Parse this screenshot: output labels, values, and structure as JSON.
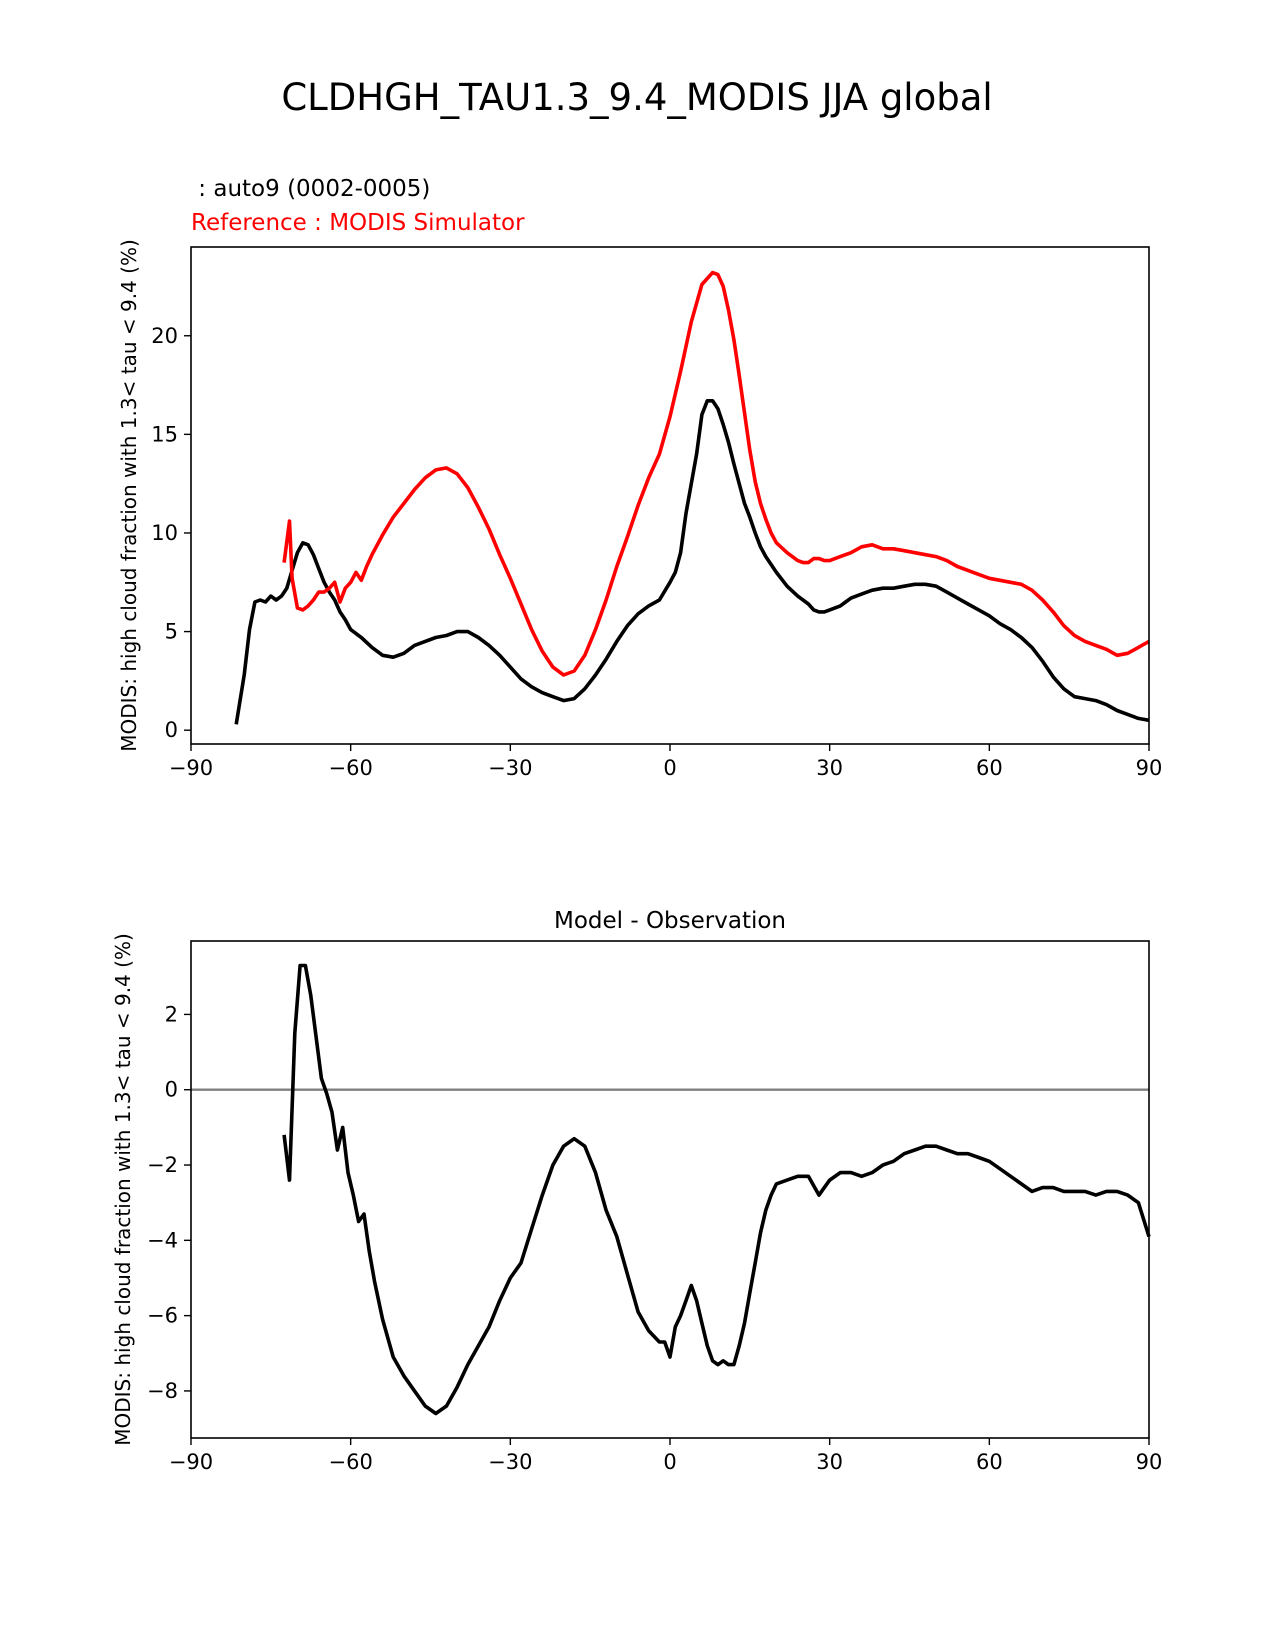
{
  "figure": {
    "title": "CLDHGH_TAU1.3_9.4_MODIS JJA global"
  },
  "colors": {
    "test": "#000000",
    "reference": "#ff0000",
    "zero_line": "#808080"
  },
  "chart_data": [
    {
      "type": "line",
      "test_label": " : auto9 (0002-0005)",
      "reference_label": "Reference : MODIS Simulator",
      "xlabel": "",
      "ylabel": "MODIS: high cloud fraction with 1.3< tau < 9.4 (%)",
      "xlim": [
        -90,
        90
      ],
      "ylim": [
        -0.7,
        24.5
      ],
      "xticks": [
        -90,
        -60,
        -30,
        0,
        30,
        60,
        90
      ],
      "yticks": [
        0,
        5,
        10,
        15,
        20
      ],
      "xtick_labels": [
        "−90",
        "−60",
        "−30",
        "0",
        "30",
        "60",
        "90"
      ],
      "ytick_labels": [
        "0",
        "5",
        "10",
        "15",
        "20"
      ],
      "series": [
        {
          "name": "test",
          "color": "#000000",
          "x": [
            -81.5,
            -80,
            -79,
            -78,
            -77,
            -76,
            -75,
            -74,
            -73,
            -72,
            -71,
            -70,
            -69,
            -68,
            -67,
            -66,
            -65,
            -64,
            -63,
            -62,
            -61,
            -60,
            -58,
            -56,
            -54,
            -52,
            -50,
            -48,
            -46,
            -44,
            -42,
            -40,
            -38,
            -36,
            -34,
            -32,
            -30,
            -28,
            -26,
            -24,
            -22,
            -20,
            -18,
            -16,
            -14,
            -12,
            -10,
            -8,
            -6,
            -4,
            -2,
            0,
            1,
            2,
            3,
            4,
            5,
            6,
            7,
            8,
            9,
            10,
            11,
            12,
            13,
            14,
            15,
            16,
            17,
            18,
            19,
            20,
            22,
            24,
            26,
            27,
            28,
            29,
            30,
            31,
            32,
            33,
            34,
            36,
            38,
            40,
            42,
            44,
            46,
            48,
            50,
            52,
            54,
            56,
            58,
            60,
            62,
            64,
            66,
            68,
            70,
            72,
            74,
            76,
            78,
            80,
            82,
            84,
            86,
            88,
            90
          ],
          "values": [
            0.3,
            2.8,
            5.1,
            6.5,
            6.6,
            6.5,
            6.8,
            6.6,
            6.8,
            7.2,
            8.1,
            9.0,
            9.5,
            9.4,
            8.9,
            8.2,
            7.5,
            7.0,
            6.6,
            6.0,
            5.6,
            5.1,
            4.7,
            4.2,
            3.8,
            3.7,
            3.9,
            4.3,
            4.5,
            4.7,
            4.8,
            5.0,
            5.0,
            4.7,
            4.3,
            3.8,
            3.2,
            2.6,
            2.2,
            1.9,
            1.7,
            1.5,
            1.6,
            2.1,
            2.8,
            3.6,
            4.5,
            5.3,
            5.9,
            6.3,
            6.6,
            7.5,
            8.0,
            9.0,
            11.0,
            12.5,
            14.0,
            16.0,
            16.7,
            16.7,
            16.3,
            15.5,
            14.6,
            13.5,
            12.5,
            11.5,
            10.8,
            10.0,
            9.3,
            8.8,
            8.4,
            8.0,
            7.3,
            6.8,
            6.4,
            6.1,
            6.0,
            6.0,
            6.1,
            6.2,
            6.3,
            6.5,
            6.7,
            6.9,
            7.1,
            7.2,
            7.2,
            7.3,
            7.4,
            7.4,
            7.3,
            7.0,
            6.7,
            6.4,
            6.1,
            5.8,
            5.4,
            5.1,
            4.7,
            4.2,
            3.5,
            2.7,
            2.1,
            1.7,
            1.6,
            1.5,
            1.3,
            1.0,
            0.8,
            0.6,
            0.5
          ]
        },
        {
          "name": "reference",
          "color": "#ff0000",
          "x": [
            -72.5,
            -71.5,
            -71,
            -70,
            -69,
            -68,
            -67,
            -66,
            -65,
            -64,
            -63,
            -62,
            -61,
            -60,
            -59,
            -58,
            -57,
            -56,
            -54,
            -52,
            -50,
            -48,
            -46,
            -44,
            -42,
            -40,
            -38,
            -36,
            -34,
            -32,
            -30,
            -28,
            -26,
            -24,
            -22,
            -20,
            -18,
            -16,
            -14,
            -12,
            -10,
            -8,
            -6,
            -4,
            -2,
            0,
            2,
            4,
            6,
            8,
            9,
            10,
            11,
            12,
            13,
            14,
            15,
            16,
            17,
            18,
            19,
            20,
            22,
            24,
            25,
            26,
            27,
            28,
            29,
            30,
            32,
            34,
            36,
            38,
            40,
            42,
            44,
            46,
            48,
            50,
            52,
            54,
            56,
            58,
            60,
            62,
            64,
            66,
            68,
            70,
            72,
            74,
            76,
            78,
            80,
            82,
            84,
            86,
            88,
            90
          ],
          "values": [
            8.5,
            10.6,
            7.7,
            6.2,
            6.1,
            6.3,
            6.6,
            7.0,
            7.0,
            7.2,
            7.5,
            6.5,
            7.2,
            7.5,
            8.0,
            7.6,
            8.3,
            8.9,
            9.9,
            10.8,
            11.5,
            12.2,
            12.8,
            13.2,
            13.3,
            13.0,
            12.3,
            11.3,
            10.2,
            8.9,
            7.7,
            6.4,
            5.1,
            4.0,
            3.2,
            2.8,
            3.0,
            3.8,
            5.1,
            6.6,
            8.3,
            9.8,
            11.4,
            12.8,
            14.0,
            15.9,
            18.2,
            20.7,
            22.6,
            23.2,
            23.1,
            22.5,
            21.3,
            19.8,
            18.0,
            16.1,
            14.2,
            12.6,
            11.5,
            10.7,
            10.0,
            9.5,
            9.0,
            8.6,
            8.5,
            8.5,
            8.7,
            8.7,
            8.6,
            8.6,
            8.8,
            9.0,
            9.3,
            9.4,
            9.2,
            9.2,
            9.1,
            9.0,
            8.9,
            8.8,
            8.6,
            8.3,
            8.1,
            7.9,
            7.7,
            7.6,
            7.5,
            7.4,
            7.1,
            6.6,
            6.0,
            5.3,
            4.8,
            4.5,
            4.3,
            4.1,
            3.8,
            3.9,
            4.2,
            4.5
          ]
        }
      ]
    },
    {
      "type": "line",
      "title": "Model - Observation",
      "xlabel": "",
      "ylabel": "MODIS: high cloud fraction with 1.3< tau < 9.4 (%)",
      "xlim": [
        -90,
        90
      ],
      "ylim": [
        -9.25,
        3.95
      ],
      "xticks": [
        -90,
        -60,
        -30,
        0,
        30,
        60,
        90
      ],
      "yticks": [
        -8,
        -6,
        -4,
        -2,
        0,
        2
      ],
      "xtick_labels": [
        "−90",
        "−60",
        "−30",
        "0",
        "30",
        "60",
        "90"
      ],
      "ytick_labels": [
        "−8",
        "−6",
        "−4",
        "−2",
        "0",
        "2"
      ],
      "zero_line": 0,
      "series": [
        {
          "name": "difference",
          "color": "#000000",
          "x": [
            -72.5,
            -71.5,
            -70.5,
            -69.5,
            -68.5,
            -67.5,
            -66.5,
            -65.5,
            -64.5,
            -63.5,
            -62.5,
            -61.5,
            -60.5,
            -59.5,
            -58.5,
            -57.5,
            -56.5,
            -55.5,
            -54,
            -52,
            -50,
            -48,
            -46,
            -44,
            -42,
            -40,
            -38,
            -36,
            -34,
            -32,
            -30,
            -28,
            -26,
            -24,
            -22,
            -20,
            -18,
            -16,
            -14,
            -12,
            -10,
            -8,
            -6,
            -4,
            -2,
            -1,
            0,
            1,
            2,
            3,
            4,
            5,
            6,
            7,
            8,
            9,
            10,
            11,
            12,
            13,
            14,
            15,
            16,
            17,
            18,
            19,
            20,
            22,
            24,
            26,
            28,
            29,
            30,
            32,
            34,
            36,
            38,
            40,
            42,
            44,
            46,
            48,
            50,
            52,
            54,
            56,
            58,
            60,
            62,
            64,
            66,
            68,
            70,
            72,
            74,
            76,
            78,
            80,
            82,
            84,
            86,
            88,
            90
          ],
          "values": [
            -1.2,
            -2.4,
            1.5,
            3.3,
            3.3,
            2.5,
            1.4,
            0.3,
            -0.1,
            -0.6,
            -1.6,
            -1.0,
            -2.2,
            -2.8,
            -3.5,
            -3.3,
            -4.3,
            -5.1,
            -6.1,
            -7.1,
            -7.6,
            -8.0,
            -8.4,
            -8.6,
            -8.4,
            -7.9,
            -7.3,
            -6.8,
            -6.3,
            -5.6,
            -5.0,
            -4.6,
            -3.7,
            -2.8,
            -2.0,
            -1.5,
            -1.3,
            -1.5,
            -2.2,
            -3.2,
            -3.9,
            -4.9,
            -5.9,
            -6.4,
            -6.7,
            -6.7,
            -7.1,
            -6.3,
            -6.0,
            -5.6,
            -5.2,
            -5.6,
            -6.2,
            -6.8,
            -7.2,
            -7.3,
            -7.2,
            -7.3,
            -7.3,
            -6.8,
            -6.2,
            -5.4,
            -4.6,
            -3.8,
            -3.2,
            -2.8,
            -2.5,
            -2.4,
            -2.3,
            -2.3,
            -2.8,
            -2.6,
            -2.4,
            -2.2,
            -2.2,
            -2.3,
            -2.2,
            -2.0,
            -1.9,
            -1.7,
            -1.6,
            -1.5,
            -1.5,
            -1.6,
            -1.7,
            -1.7,
            -1.8,
            -1.9,
            -2.1,
            -2.3,
            -2.5,
            -2.7,
            -2.6,
            -2.6,
            -2.7,
            -2.7,
            -2.7,
            -2.8,
            -2.7,
            -2.7,
            -2.8,
            -3.0,
            -3.9
          ]
        }
      ]
    }
  ]
}
